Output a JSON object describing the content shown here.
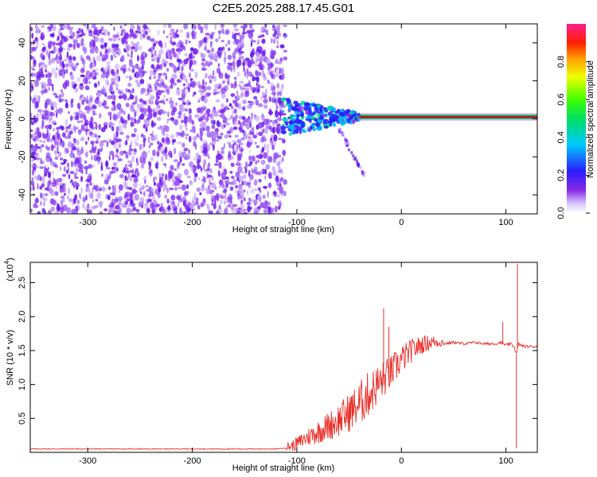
{
  "title": "C2E5.2025.288.17.45.G01",
  "colors": {
    "snr_line": "#e8302a",
    "background": "#ffffff",
    "axis": "#000000"
  },
  "chart_data": [
    {
      "type": "heatmap",
      "title": "C2E5.2025.288.17.45.G01",
      "xlabel": "Height of straight line (km)",
      "ylabel": "Frequency (Hz)",
      "xlim": [
        -355,
        130
      ],
      "ylim": [
        -50,
        50
      ],
      "x_ticks": [
        -300,
        -200,
        -100,
        0,
        100
      ],
      "x_tick_labels": [
        "-300",
        "-200",
        "-100",
        "0",
        "100"
      ],
      "y_ticks": [
        -40,
        -20,
        0,
        20,
        40
      ],
      "y_tick_labels": [
        "-40",
        "-20",
        "0",
        "20",
        "40"
      ],
      "colorbar": {
        "label": "Normalized spectral amplitude",
        "range": [
          0,
          1
        ],
        "ticks": [
          0.0,
          0.2,
          0.4,
          0.6,
          0.8
        ],
        "tick_labels": [
          "0.0",
          "0.2",
          "0.4",
          "0.6",
          "0.8"
        ],
        "colormap": "rainbow (white-violet-blue-cyan-green-yellow-orange-red-magenta)"
      },
      "regions": [
        {
          "name": "noise",
          "x_range": [
            -355,
            -115
          ],
          "freq_range": [
            -50,
            50
          ],
          "amplitude": 0.15
        },
        {
          "name": "fading onset",
          "x_range": [
            -115,
            -40
          ],
          "freq_range": [
            -10,
            9
          ],
          "amplitude": 0.35
        },
        {
          "name": "tail",
          "x_range": [
            -60,
            -35
          ],
          "freq_range": [
            -30,
            -5
          ],
          "amplitude": 0.1
        },
        {
          "name": "carrier",
          "x_range": [
            -40,
            130
          ],
          "freq": 1,
          "amplitude": 0.95
        }
      ]
    },
    {
      "type": "line",
      "xlabel": "Height of straight line (km)",
      "ylabel": "SNR (10 * v/v)",
      "y_scale_label": "(x10",
      "y_scale_exponent": "4",
      "y_scale_suffix": ")",
      "xlim": [
        -355,
        130
      ],
      "ylim": [
        0,
        2.8
      ],
      "x_ticks": [
        -300,
        -200,
        -100,
        0,
        100
      ],
      "x_tick_labels": [
        "-300",
        "-200",
        "-100",
        "0",
        "100"
      ],
      "y_ticks": [
        0.5,
        1.0,
        1.5,
        2.0,
        2.5
      ],
      "y_tick_labels": [
        "0.5",
        "1.0",
        "1.5",
        "2.0",
        "2.5"
      ],
      "series": [
        {
          "name": "SNR",
          "x": [
            -355,
            -300,
            -250,
            -200,
            -150,
            -120,
            -105,
            -100,
            -90,
            -80,
            -70,
            -60,
            -50,
            -40,
            -30,
            -20,
            -10,
            0,
            10,
            20,
            30,
            40,
            50,
            60,
            70,
            80,
            90,
            95,
            100,
            105,
            108,
            110,
            112,
            115,
            120,
            130
          ],
          "y": [
            0.05,
            0.05,
            0.05,
            0.05,
            0.05,
            0.05,
            0.07,
            0.1,
            0.18,
            0.25,
            0.32,
            0.4,
            0.5,
            0.62,
            0.78,
            0.95,
            1.1,
            1.3,
            1.45,
            1.55,
            1.6,
            1.6,
            1.62,
            1.6,
            1.62,
            1.6,
            1.6,
            1.62,
            1.58,
            1.6,
            1.55,
            1.45,
            1.6,
            1.57,
            1.56,
            1.56
          ]
        }
      ],
      "spikes": [
        {
          "x": -17,
          "y": 2.12
        },
        {
          "x": -12,
          "y": 1.85
        },
        {
          "x": 97,
          "y": 1.92
        },
        {
          "x": 111,
          "y": 2.78
        },
        {
          "x": 110,
          "y": 0.06
        }
      ]
    }
  ]
}
